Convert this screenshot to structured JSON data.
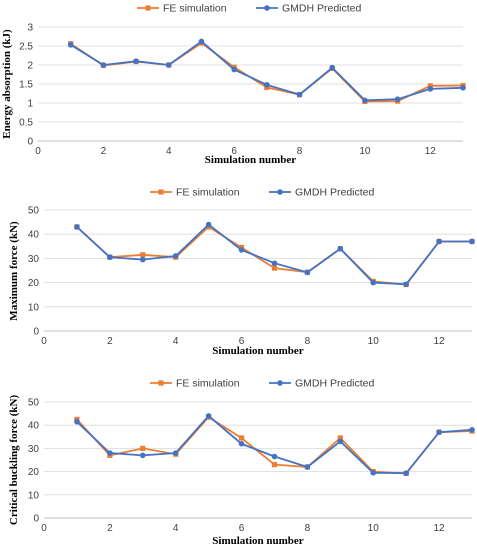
{
  "colors": {
    "fe": "#ED7D31",
    "gmdh": "#4472C4",
    "grid": "#D9D9D9",
    "axis": "#BFBFBF"
  },
  "legend": {
    "fe": "FE simulation",
    "gmdh": "GMDH Predicted"
  },
  "chart_data": [
    {
      "type": "line",
      "title": "",
      "xlabel": "Simulation number",
      "ylabel": "Energy absorption (kJ)",
      "xlim": [
        0,
        13
      ],
      "ylim": [
        0,
        3
      ],
      "xticks": [
        0,
        2,
        4,
        6,
        8,
        10,
        12
      ],
      "yticks": [
        0,
        0.5,
        1,
        1.5,
        2,
        2.5,
        3
      ],
      "ytick_labels": [
        "0",
        "0.5",
        "1",
        "1.5",
        "2",
        "2.5",
        "3"
      ],
      "legend_position": "top",
      "grid": "horizontal",
      "x": [
        1,
        2,
        3,
        4,
        5,
        6,
        7,
        8,
        9,
        10,
        11,
        12,
        13
      ],
      "series": [
        {
          "name": "FE simulation",
          "marker": "square",
          "values": [
            2.56,
            1.99,
            2.09,
            2.0,
            2.58,
            1.94,
            1.41,
            1.22,
            1.91,
            1.04,
            1.05,
            1.45,
            1.46
          ]
        },
        {
          "name": "GMDH Predicted",
          "marker": "circle",
          "values": [
            2.53,
            2.0,
            2.1,
            2.0,
            2.62,
            1.88,
            1.48,
            1.22,
            1.93,
            1.07,
            1.1,
            1.37,
            1.4
          ]
        }
      ]
    },
    {
      "type": "line",
      "title": "",
      "xlabel": "Simulation number",
      "ylabel": "Maximum force (kN)",
      "xlim": [
        0,
        13
      ],
      "ylim": [
        0,
        50
      ],
      "xticks": [
        0,
        2,
        4,
        6,
        8,
        10,
        12
      ],
      "yticks": [
        0,
        10,
        20,
        30,
        40,
        50
      ],
      "ytick_labels": [
        "0",
        "10",
        "20",
        "30",
        "40",
        "50"
      ],
      "legend_position": "top",
      "grid": "horizontal",
      "x": [
        1,
        2,
        3,
        4,
        5,
        6,
        7,
        8,
        9,
        10,
        11,
        12,
        13
      ],
      "series": [
        {
          "name": "FE simulation",
          "marker": "square",
          "values": [
            43,
            30.5,
            31.5,
            30.5,
            43,
            34.5,
            26,
            24.3,
            34,
            20.5,
            19.2,
            37,
            37
          ]
        },
        {
          "name": "GMDH Predicted",
          "marker": "circle",
          "values": [
            43,
            30.5,
            29.5,
            31,
            44,
            33.5,
            28,
            24.2,
            34,
            20,
            19.3,
            37,
            37
          ]
        }
      ]
    },
    {
      "type": "line",
      "title": "",
      "xlabel": "Simulation number",
      "ylabel": "Critical buckling force (kN)",
      "xlim": [
        0,
        13
      ],
      "ylim": [
        0,
        50
      ],
      "xticks": [
        0,
        2,
        4,
        6,
        8,
        10,
        12
      ],
      "yticks": [
        0,
        10,
        20,
        30,
        40,
        50
      ],
      "ytick_labels": [
        "0",
        "10",
        "20",
        "30",
        "40",
        "50"
      ],
      "legend_position": "top",
      "grid": "horizontal",
      "x": [
        1,
        2,
        3,
        4,
        5,
        6,
        7,
        8,
        9,
        10,
        11,
        12,
        13
      ],
      "series": [
        {
          "name": "FE simulation",
          "marker": "square",
          "values": [
            42.5,
            27,
            30,
            27.5,
            43.5,
            34.5,
            23,
            22,
            34.5,
            20,
            19.2,
            37,
            37.5
          ]
        },
        {
          "name": "GMDH Predicted",
          "marker": "circle",
          "values": [
            41.5,
            28,
            27,
            28,
            44,
            32,
            26.5,
            22,
            33,
            19.5,
            19.3,
            37,
            38
          ]
        }
      ]
    }
  ]
}
